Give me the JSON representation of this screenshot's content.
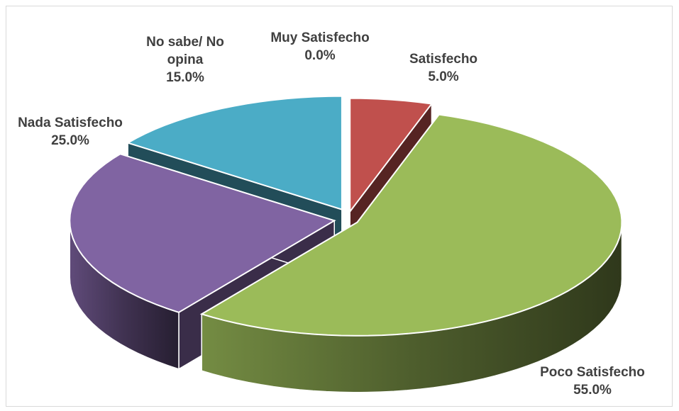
{
  "chart_data": {
    "type": "pie",
    "style": "3d-exploded",
    "categories": [
      "Muy Satisfecho",
      "Satisfecho",
      "Poco Satisfecho",
      "Nada Satisfecho",
      "No sabe/ No opina"
    ],
    "values": [
      0.0,
      5.0,
      55.0,
      25.0,
      15.0
    ],
    "value_labels": [
      "0.0%",
      "5.0%",
      "55.0%",
      "25.0%",
      "15.0%"
    ],
    "label_lines": [
      [
        "Muy Satisfecho"
      ],
      [
        "Satisfecho"
      ],
      [
        "Poco Satisfecho"
      ],
      [
        "Nada Satisfecho"
      ],
      [
        "No sabe/ No",
        "opina"
      ]
    ],
    "colors": [
      "#4472C4",
      "#C0504D",
      "#9BBB59",
      "#8064A2",
      "#4BACC6"
    ],
    "legend": "none",
    "title": ""
  }
}
